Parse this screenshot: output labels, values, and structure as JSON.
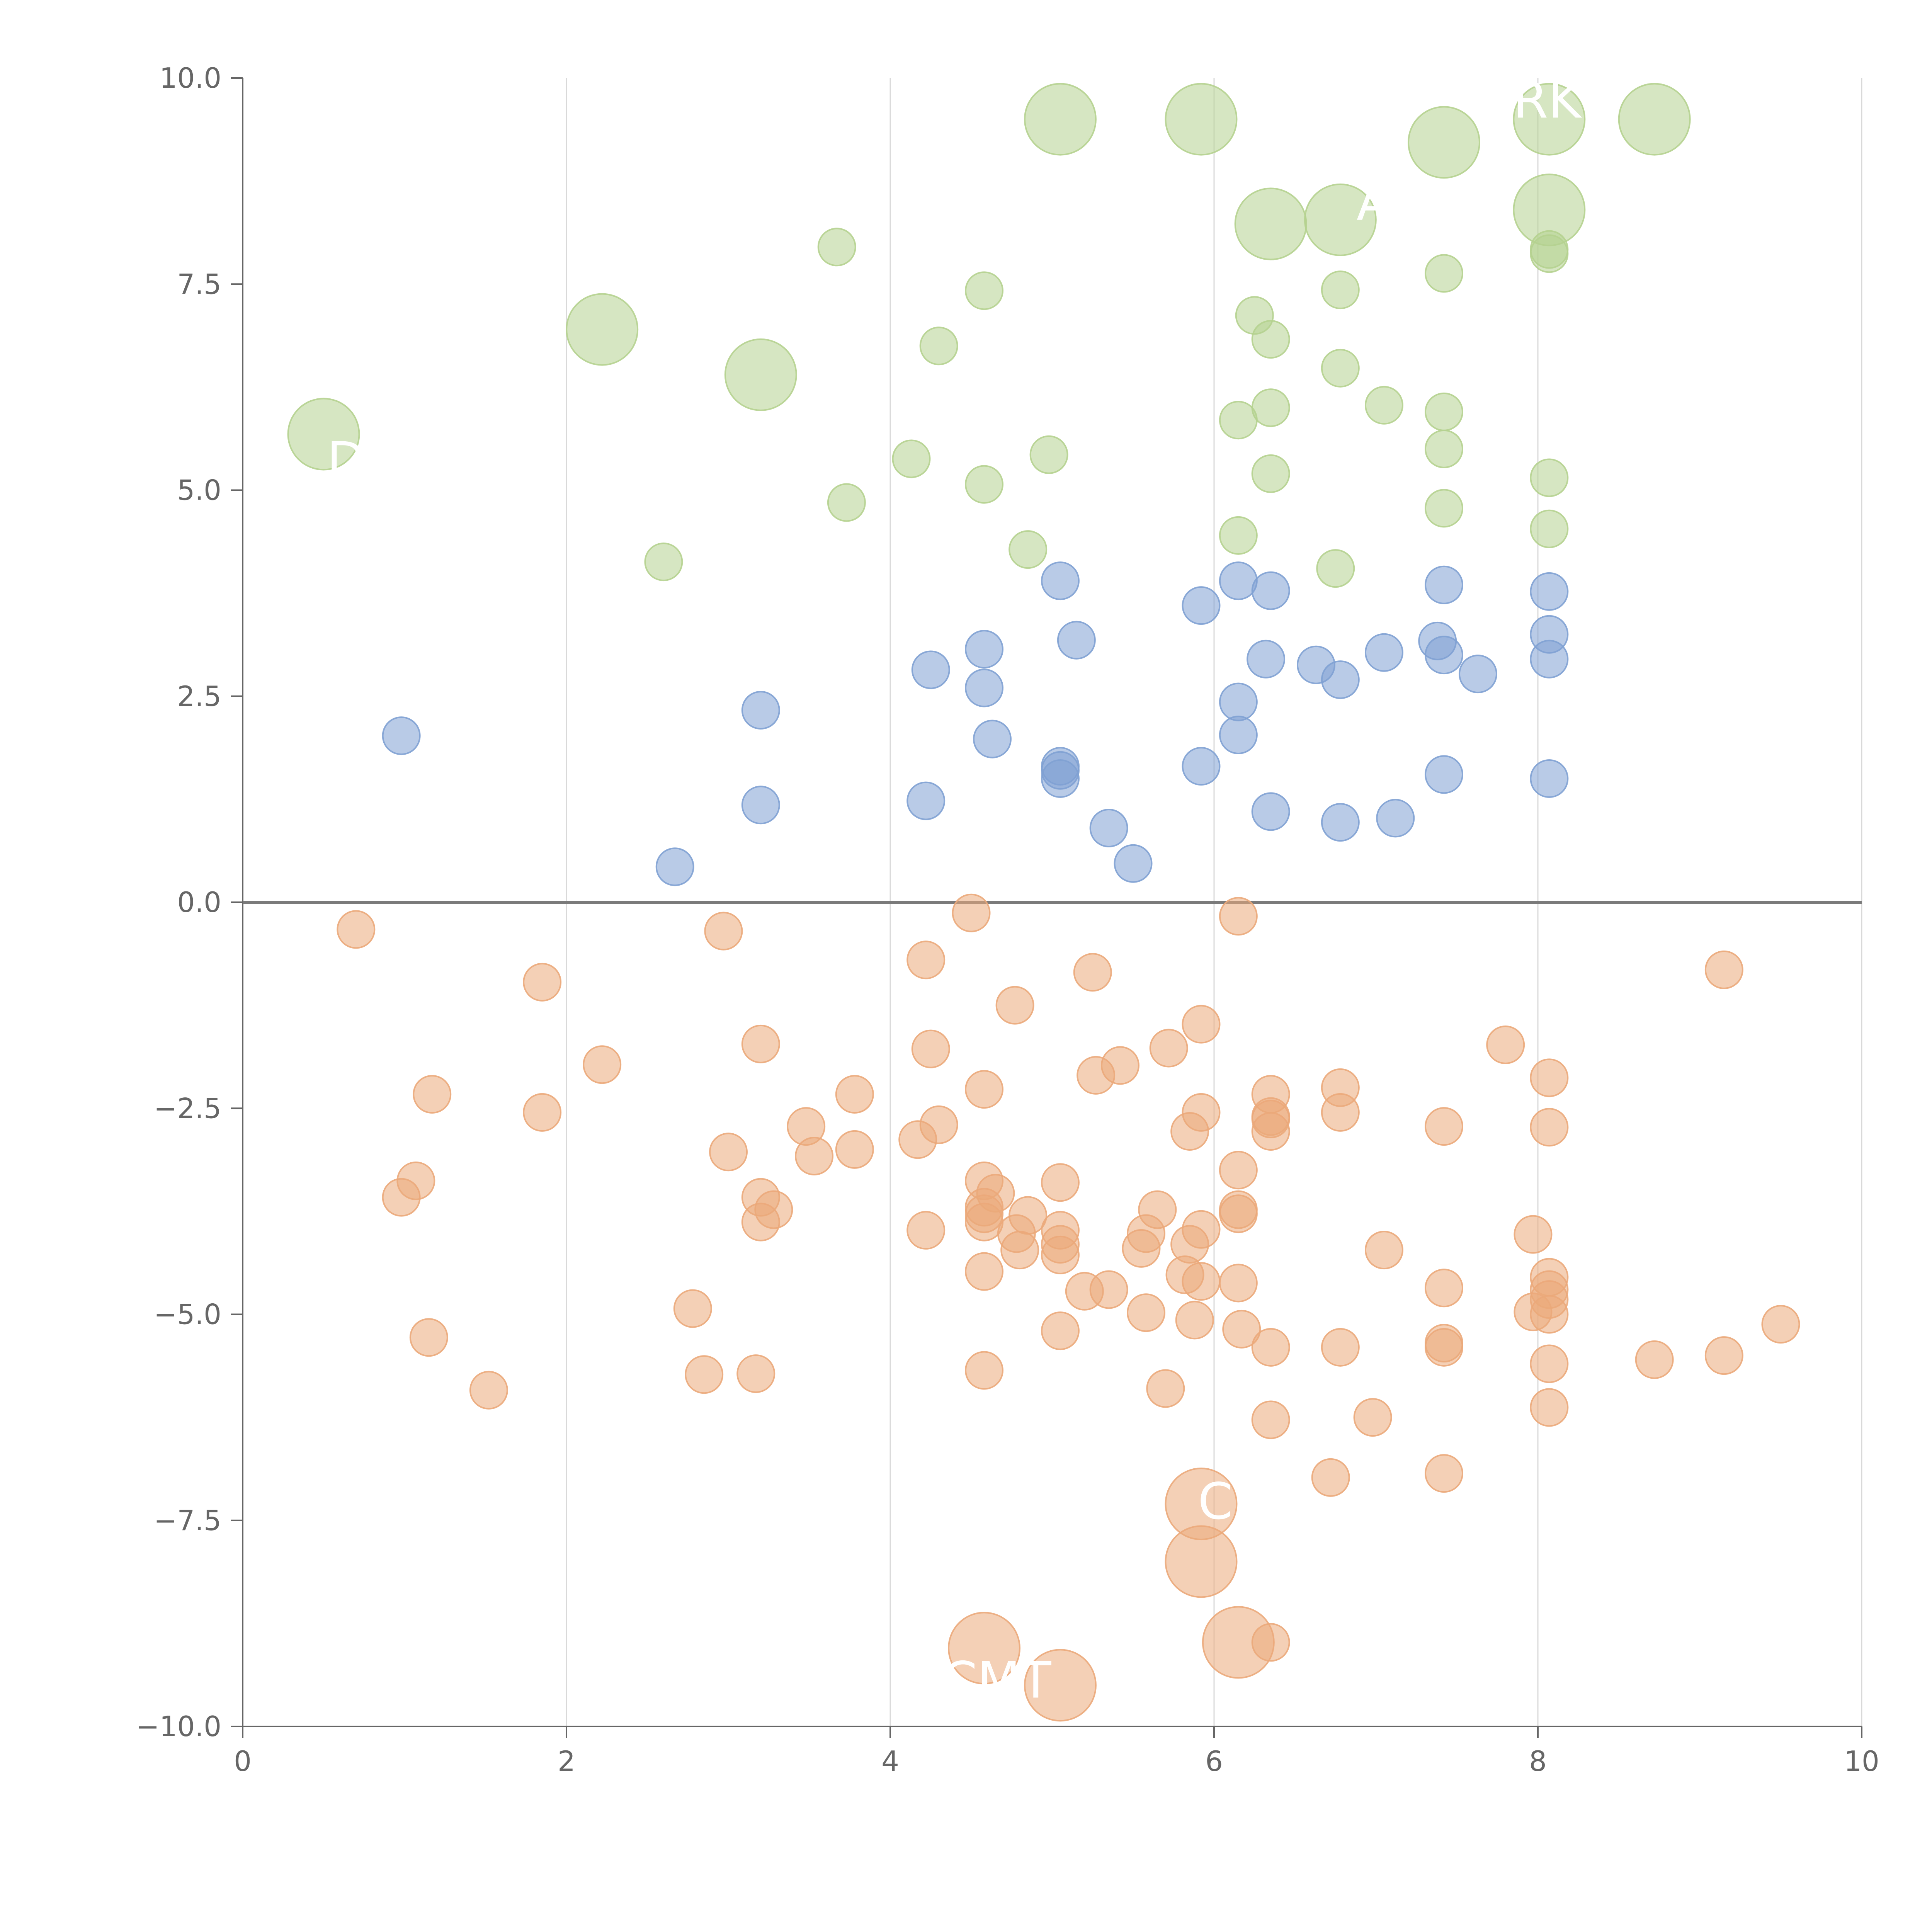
{
  "chart_data": {
    "type": "scatter",
    "title": "",
    "xlabel": "",
    "ylabel": "",
    "xlim": [
      0,
      10
    ],
    "ylim": [
      -10,
      10
    ],
    "grid": "vertical lines at x ticks",
    "x_ticks": [
      "0",
      "2",
      "4",
      "6",
      "8",
      "10"
    ],
    "y_ticks": [
      "−10.0",
      "−7.5",
      "−5.0",
      "−2.5",
      "0.0",
      "2.5",
      "5.0",
      "7.5",
      "10.0"
    ],
    "colors": {
      "green": "#b5d18f",
      "blue": "#7fa1d3",
      "orange": "#eba97a",
      "axis": "#666666",
      "grid": "#d9d9d9",
      "label": "#ffffff"
    },
    "series": [
      {
        "name": "green",
        "color": "#b5d18f",
        "points": [
          [
            5.05,
            9.5,
            1
          ],
          [
            5.92,
            9.5,
            1
          ],
          [
            7.42,
            9.22,
            1
          ],
          [
            8.07,
            9.5,
            1
          ],
          [
            8.72,
            9.5,
            1
          ],
          [
            6.35,
            8.23,
            1
          ],
          [
            6.78,
            8.28,
            1
          ],
          [
            8.07,
            8.4,
            1
          ],
          [
            2.22,
            6.95,
            1
          ],
          [
            3.2,
            6.4,
            1
          ],
          [
            0.5,
            5.68,
            1
          ],
          [
            3.67,
            7.95,
            0
          ],
          [
            4.58,
            7.42,
            0
          ],
          [
            4.3,
            6.75,
            0
          ],
          [
            8.07,
            7.92,
            0
          ],
          [
            8.07,
            7.87,
            0
          ],
          [
            6.25,
            7.12,
            0
          ],
          [
            6.35,
            6.83,
            0
          ],
          [
            6.78,
            7.43,
            0
          ],
          [
            7.42,
            7.63,
            0
          ],
          [
            6.78,
            6.48,
            0
          ],
          [
            7.05,
            6.03,
            0
          ],
          [
            6.35,
            6.0,
            0
          ],
          [
            6.15,
            5.85,
            0
          ],
          [
            7.42,
            5.95,
            0
          ],
          [
            7.42,
            5.5,
            0
          ],
          [
            4.13,
            5.38,
            0
          ],
          [
            4.98,
            5.43,
            0
          ],
          [
            4.58,
            5.07,
            0
          ],
          [
            3.73,
            4.85,
            0
          ],
          [
            6.35,
            5.2,
            0
          ],
          [
            8.07,
            5.15,
            0
          ],
          [
            7.42,
            4.78,
            0
          ],
          [
            6.15,
            4.45,
            0
          ],
          [
            8.07,
            4.53,
            0
          ],
          [
            4.85,
            4.28,
            0
          ],
          [
            2.6,
            4.13,
            0
          ],
          [
            6.75,
            4.05,
            0
          ]
        ]
      },
      {
        "name": "blue",
        "color": "#7fa1d3",
        "points": [
          [
            5.05,
            3.9,
            0
          ],
          [
            6.15,
            3.9,
            0
          ],
          [
            6.35,
            3.78,
            0
          ],
          [
            7.42,
            3.85,
            0
          ],
          [
            8.07,
            3.77,
            0
          ],
          [
            5.92,
            3.6,
            0
          ],
          [
            5.15,
            3.18,
            0
          ],
          [
            4.58,
            3.07,
            0
          ],
          [
            4.25,
            2.82,
            0
          ],
          [
            6.32,
            2.95,
            0
          ],
          [
            6.63,
            2.88,
            0
          ],
          [
            6.78,
            2.7,
            0
          ],
          [
            7.05,
            3.03,
            0
          ],
          [
            7.38,
            3.17,
            0
          ],
          [
            7.42,
            3.0,
            0
          ],
          [
            7.63,
            2.77,
            0
          ],
          [
            8.07,
            3.25,
            0
          ],
          [
            8.07,
            2.95,
            0
          ],
          [
            4.58,
            2.6,
            0
          ],
          [
            6.15,
            2.43,
            0
          ],
          [
            6.15,
            2.03,
            0
          ],
          [
            0.98,
            2.02,
            0
          ],
          [
            3.2,
            2.33,
            0
          ],
          [
            4.63,
            1.98,
            0
          ],
          [
            5.05,
            1.65,
            0
          ],
          [
            5.05,
            1.6,
            0
          ],
          [
            5.05,
            1.5,
            0
          ],
          [
            5.92,
            1.65,
            0
          ],
          [
            7.42,
            1.55,
            0
          ],
          [
            8.07,
            1.5,
            0
          ],
          [
            3.2,
            1.18,
            0
          ],
          [
            4.22,
            1.23,
            0
          ],
          [
            6.35,
            1.1,
            0
          ],
          [
            6.78,
            0.97,
            0
          ],
          [
            7.12,
            1.02,
            0
          ],
          [
            5.35,
            0.9,
            0
          ],
          [
            5.5,
            0.47,
            0
          ],
          [
            2.67,
            0.43,
            0
          ]
        ]
      },
      {
        "name": "orange",
        "color": "#eba97a",
        "points": [
          [
            0.7,
            -0.33,
            0
          ],
          [
            2.97,
            -0.35,
            0
          ],
          [
            4.5,
            -0.13,
            0
          ],
          [
            6.15,
            -0.17,
            0
          ],
          [
            4.22,
            -0.7,
            0
          ],
          [
            5.25,
            -0.85,
            0
          ],
          [
            9.15,
            -0.82,
            0
          ],
          [
            1.85,
            -0.97,
            0
          ],
          [
            4.77,
            -1.25,
            0
          ],
          [
            3.2,
            -1.72,
            0
          ],
          [
            4.25,
            -1.78,
            0
          ],
          [
            5.92,
            -1.48,
            0
          ],
          [
            5.72,
            -1.77,
            0
          ],
          [
            7.8,
            -1.73,
            0
          ],
          [
            2.22,
            -1.97,
            0
          ],
          [
            5.42,
            -1.98,
            0
          ],
          [
            5.27,
            -2.1,
            0
          ],
          [
            8.07,
            -2.13,
            0
          ],
          [
            1.17,
            -2.33,
            0
          ],
          [
            3.78,
            -2.33,
            0
          ],
          [
            4.58,
            -2.27,
            0
          ],
          [
            6.35,
            -2.33,
            0
          ],
          [
            6.78,
            -2.25,
            0
          ],
          [
            1.85,
            -2.55,
            0
          ],
          [
            5.92,
            -2.55,
            0
          ],
          [
            6.35,
            -2.6,
            0
          ],
          [
            6.35,
            -2.63,
            0
          ],
          [
            6.78,
            -2.55,
            0
          ],
          [
            3.48,
            -2.72,
            0
          ],
          [
            4.3,
            -2.7,
            0
          ],
          [
            5.85,
            -2.78,
            0
          ],
          [
            6.35,
            -2.78,
            0
          ],
          [
            7.42,
            -2.72,
            0
          ],
          [
            8.07,
            -2.73,
            0
          ],
          [
            4.17,
            -2.88,
            0
          ],
          [
            3.0,
            -3.03,
            0
          ],
          [
            3.53,
            -3.08,
            0
          ],
          [
            3.78,
            -3.0,
            0
          ],
          [
            6.15,
            -3.25,
            0
          ],
          [
            1.07,
            -3.38,
            0
          ],
          [
            0.98,
            -3.58,
            0
          ],
          [
            3.2,
            -3.58,
            0
          ],
          [
            3.28,
            -3.73,
            0
          ],
          [
            3.2,
            -3.88,
            0
          ],
          [
            4.58,
            -3.38,
            0
          ],
          [
            4.65,
            -3.53,
            0
          ],
          [
            4.58,
            -3.7,
            0
          ],
          [
            4.58,
            -3.78,
            0
          ],
          [
            4.58,
            -3.88,
            0
          ],
          [
            5.05,
            -3.4,
            0
          ],
          [
            5.65,
            -3.73,
            0
          ],
          [
            6.15,
            -3.73,
            0
          ],
          [
            6.15,
            -3.78,
            0
          ],
          [
            4.85,
            -3.8,
            0
          ],
          [
            4.78,
            -4.02,
            0
          ],
          [
            4.22,
            -3.98,
            0
          ],
          [
            5.05,
            -3.98,
            0
          ],
          [
            5.05,
            -4.15,
            0
          ],
          [
            5.05,
            -4.28,
            0
          ],
          [
            4.8,
            -4.22,
            0
          ],
          [
            5.58,
            -4.02,
            0
          ],
          [
            5.92,
            -3.97,
            0
          ],
          [
            5.85,
            -4.15,
            0
          ],
          [
            5.55,
            -4.2,
            0
          ],
          [
            7.97,
            -4.03,
            0
          ],
          [
            7.05,
            -4.22,
            0
          ],
          [
            4.58,
            -4.48,
            0
          ],
          [
            5.82,
            -4.52,
            0
          ],
          [
            5.92,
            -4.6,
            0
          ],
          [
            6.15,
            -4.62,
            0
          ],
          [
            8.07,
            -4.55,
            0
          ],
          [
            8.07,
            -4.7,
            0
          ],
          [
            8.07,
            -4.82,
            0
          ],
          [
            7.42,
            -4.68,
            0
          ],
          [
            5.2,
            -4.72,
            0
          ],
          [
            5.35,
            -4.7,
            0
          ],
          [
            2.78,
            -4.93,
            0
          ],
          [
            5.58,
            -4.98,
            0
          ],
          [
            5.88,
            -5.07,
            0
          ],
          [
            7.97,
            -4.97,
            0
          ],
          [
            8.07,
            -5.0,
            0
          ],
          [
            9.5,
            -5.12,
            0
          ],
          [
            1.15,
            -5.28,
            0
          ],
          [
            5.05,
            -5.2,
            0
          ],
          [
            6.17,
            -5.18,
            0
          ],
          [
            6.35,
            -5.4,
            0
          ],
          [
            6.78,
            -5.4,
            0
          ],
          [
            7.42,
            -5.35,
            0
          ],
          [
            7.42,
            -5.4,
            0
          ],
          [
            8.72,
            -5.55,
            0
          ],
          [
            9.15,
            -5.5,
            0
          ],
          [
            8.07,
            -5.6,
            0
          ],
          [
            2.85,
            -5.73,
            0
          ],
          [
            3.17,
            -5.72,
            0
          ],
          [
            4.58,
            -5.68,
            0
          ],
          [
            1.52,
            -5.92,
            0
          ],
          [
            5.7,
            -5.9,
            0
          ],
          [
            8.07,
            -6.13,
            0
          ],
          [
            6.35,
            -6.28,
            0
          ],
          [
            6.98,
            -6.25,
            0
          ],
          [
            6.72,
            -6.98,
            0
          ],
          [
            7.42,
            -6.93,
            0
          ],
          [
            6.35,
            -8.98,
            0
          ],
          [
            5.92,
            -7.3,
            1
          ],
          [
            5.92,
            -8.0,
            1
          ],
          [
            6.15,
            -8.98,
            1
          ],
          [
            4.58,
            -9.05,
            1
          ],
          [
            5.05,
            -9.5,
            1
          ]
        ]
      }
    ],
    "annotations": [
      {
        "text": "MRK",
        "x": 7.58,
        "y": 9.52
      },
      {
        "text": "A",
        "x": 6.88,
        "y": 8.28
      },
      {
        "text": "C",
        "x": 5.9,
        "y": -7.48
      },
      {
        "text": "CMT",
        "x": 4.32,
        "y": -9.65
      },
      {
        "text": "D",
        "x": 0.52,
        "y": 5.15
      }
    ]
  }
}
